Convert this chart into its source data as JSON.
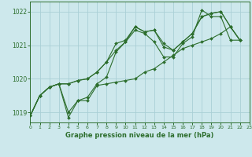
{
  "background_color": "#cde8ec",
  "grid_color": "#aacfd6",
  "line_color": "#2d6e2d",
  "marker_color": "#2d6e2d",
  "xlabel": "Graphe pression niveau de la mer (hPa)",
  "xlim": [
    0,
    23
  ],
  "ylim": [
    1018.7,
    1022.3
  ],
  "yticks": [
    1019,
    1020,
    1021,
    1022
  ],
  "xticks": [
    0,
    1,
    2,
    3,
    4,
    5,
    6,
    7,
    8,
    9,
    10,
    11,
    12,
    13,
    14,
    15,
    16,
    17,
    18,
    19,
    20,
    21,
    22,
    23
  ],
  "series": [
    [
      1018.9,
      1019.5,
      1019.75,
      1019.85,
      1018.85,
      1019.35,
      1019.45,
      1019.85,
      1020.05,
      1020.8,
      1021.1,
      1021.45,
      1021.35,
      1021.1,
      1020.65,
      1020.65,
      1021.05,
      1021.25,
      1022.05,
      1021.85,
      1021.85,
      1021.15,
      1021.15
    ],
    [
      1018.9,
      1019.5,
      1019.75,
      1019.85,
      1019.85,
      1019.95,
      1020.0,
      1020.2,
      1020.5,
      1021.05,
      1021.15,
      1021.55,
      1021.4,
      1021.45,
      1020.95,
      1020.85,
      1021.1,
      1021.35,
      1021.85,
      1021.95,
      1022.0,
      1021.55,
      1021.15
    ],
    [
      1018.9,
      1019.5,
      1019.75,
      1019.85,
      1019.85,
      1019.95,
      1020.0,
      1020.2,
      1020.5,
      1020.85,
      1021.1,
      1021.55,
      1021.4,
      1021.45,
      1021.05,
      1020.85,
      1021.1,
      1021.35,
      1021.85,
      1021.95,
      1022.0,
      1021.55,
      1021.15
    ],
    [
      1018.9,
      1019.5,
      1019.75,
      1019.85,
      1019.0,
      1019.35,
      1019.35,
      1019.8,
      1019.85,
      1019.9,
      1019.95,
      1020.0,
      1020.2,
      1020.3,
      1020.5,
      1020.7,
      1020.9,
      1021.0,
      1021.1,
      1021.2,
      1021.35,
      1021.55,
      1021.15
    ]
  ]
}
